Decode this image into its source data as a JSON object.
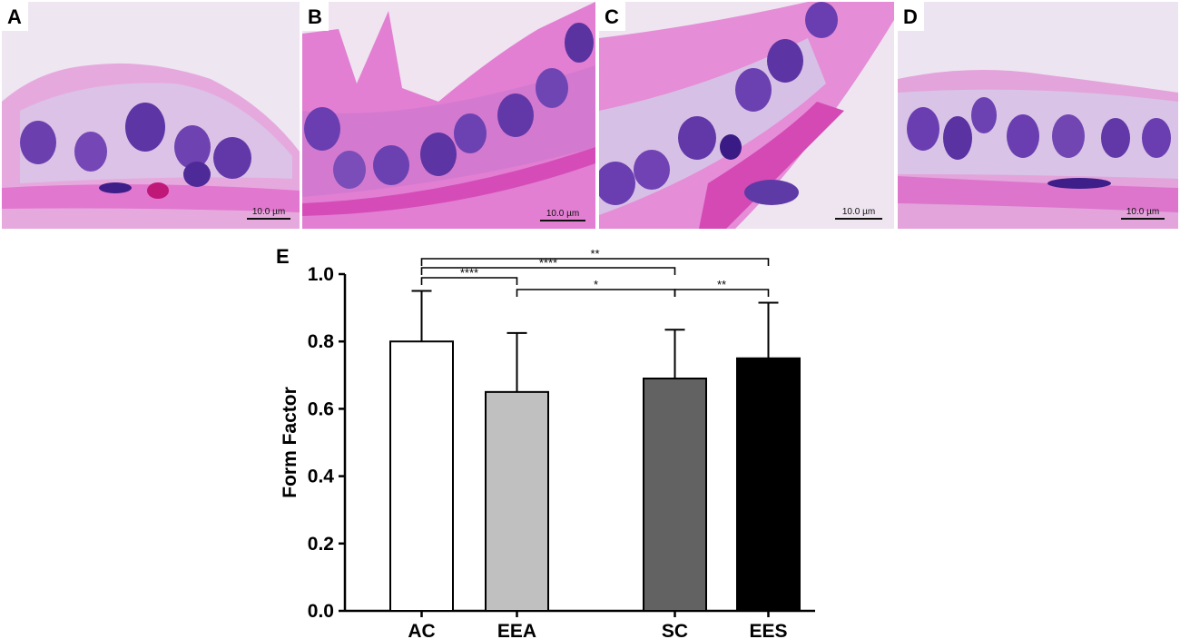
{
  "panels": [
    {
      "letter": "A",
      "scale_text": "10.0 µm"
    },
    {
      "letter": "B",
      "scale_text": "10.0 µm"
    },
    {
      "letter": "C",
      "scale_text": "10.0 µm"
    },
    {
      "letter": "D",
      "scale_text": "10.0 µm"
    }
  ],
  "chart_panel_letter": "E",
  "colors": {
    "tissue_pink": "#e58ad6",
    "nucleus_purple": "#6a3fb0",
    "background_lilac": "#f1e8f2"
  },
  "chart_data": {
    "type": "bar",
    "categories": [
      "AC",
      "EEA",
      "SC",
      "EES"
    ],
    "values": [
      0.8,
      0.65,
      0.69,
      0.75
    ],
    "errors": [
      0.15,
      0.175,
      0.145,
      0.165
    ],
    "bar_colors": [
      "#ffffff",
      "#c0c0c0",
      "#626262",
      "#000000"
    ],
    "ylabel": "Form Factor",
    "xlabel": "",
    "ylim": [
      0,
      1.0
    ],
    "yticks": [
      "0.0",
      "0.2",
      "0.4",
      "0.6",
      "0.8",
      "1.0"
    ],
    "grid": false,
    "significance": [
      {
        "from": "AC",
        "to": "EES",
        "label": "**"
      },
      {
        "from": "AC",
        "to": "SC",
        "label": "****"
      },
      {
        "from": "AC",
        "to": "EEA",
        "label": "****"
      },
      {
        "from": "SC",
        "to": "EES",
        "label": "**"
      },
      {
        "from": "EEA",
        "to": "SC",
        "label": "*"
      }
    ]
  }
}
